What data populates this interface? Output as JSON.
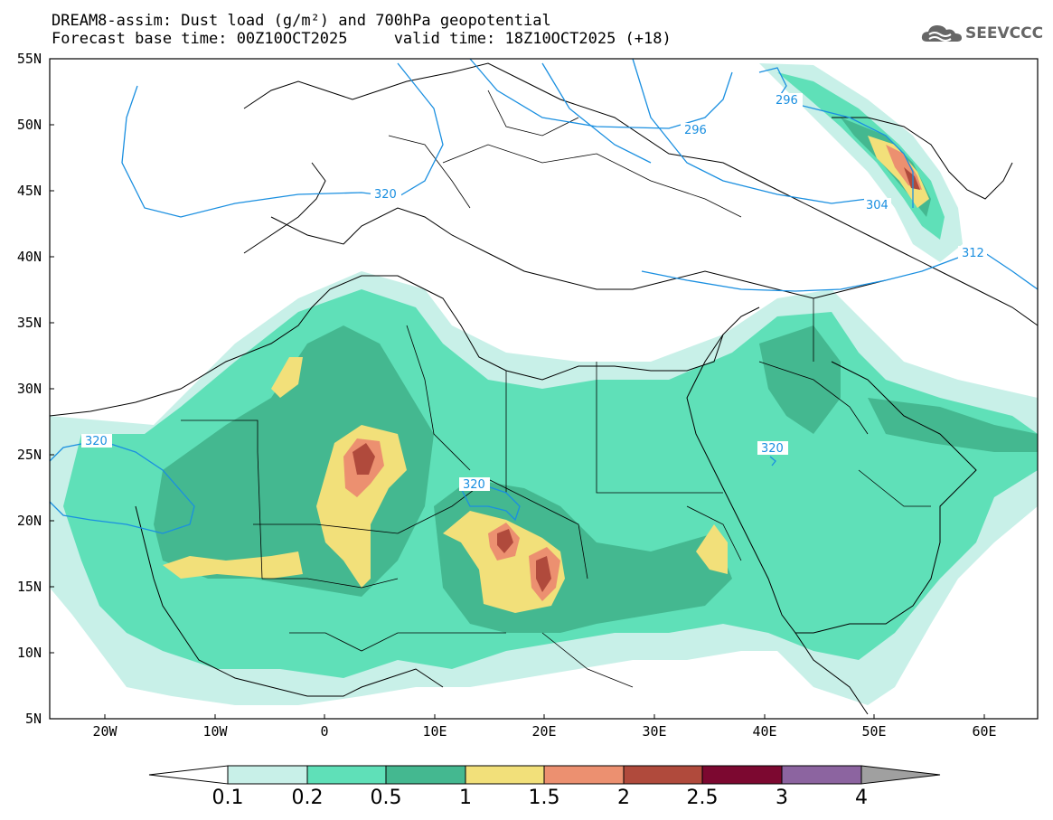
{
  "header": {
    "title_line1": "DREAM8-assim: Dust load (g/m²) and 700hPa geopotential",
    "title_line2": "Forecast base time: 00Z10OCT2025     valid time: 18Z10OCT2025 (+18)",
    "logo_text": "SEEVCCC"
  },
  "axes": {
    "lat_labels": [
      "55N",
      "50N",
      "45N",
      "40N",
      "35N",
      "30N",
      "25N",
      "20N",
      "15N",
      "10N",
      "5N"
    ],
    "lon_labels": [
      "20W",
      "10W",
      "0",
      "10E",
      "20E",
      "30E",
      "40E",
      "50E",
      "60E"
    ]
  },
  "contour_labels": {
    "c296a": "296",
    "c296b": "296",
    "c304": "304",
    "c312": "312",
    "c320a": "320",
    "c320b": "320",
    "c320c": "320",
    "c320d": "320"
  },
  "colorbar": {
    "labels": [
      "0.1",
      "0.2",
      "0.5",
      "1",
      "1.5",
      "2",
      "2.5",
      "3",
      "4"
    ],
    "colors": [
      "#c8f0e8",
      "#5fe0b8",
      "#44b890",
      "#f2e07a",
      "#ec9070",
      "#b04a3c",
      "#7c0830",
      "#8c64a0"
    ]
  },
  "colors": {
    "contour": "#1a8fe0",
    "coast": "#000000"
  }
}
